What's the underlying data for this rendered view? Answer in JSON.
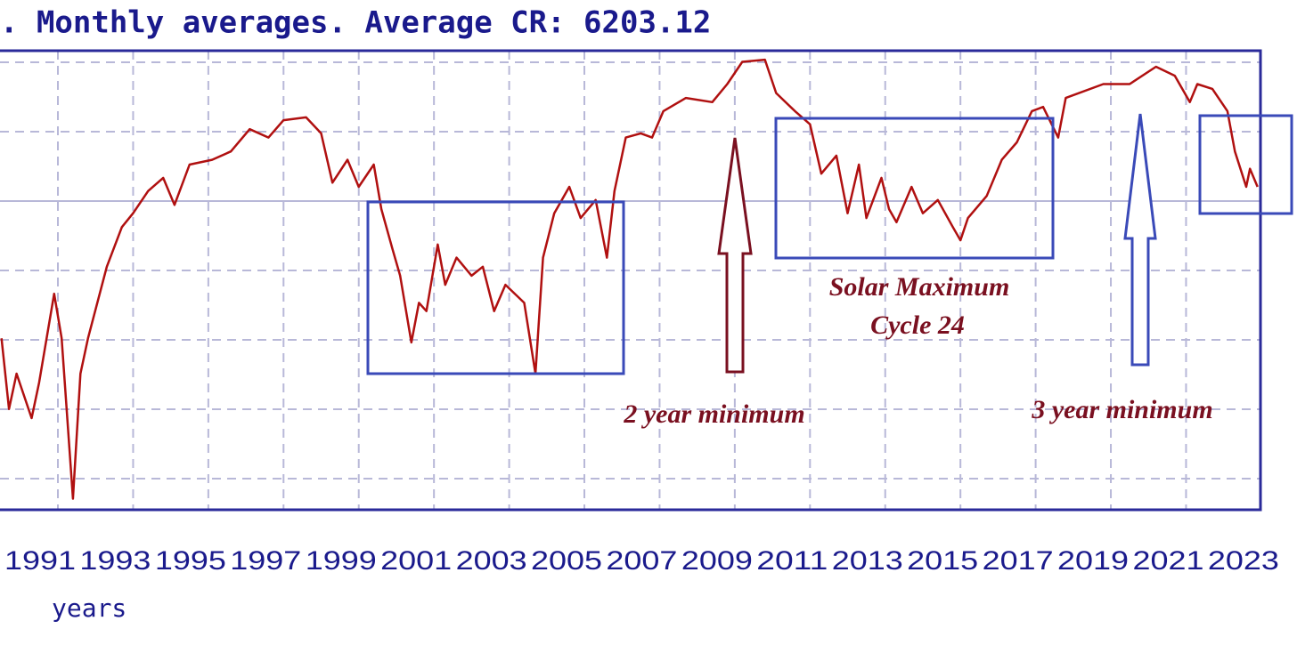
{
  "chart_data": {
    "type": "line",
    "title": ". Monthly averages. Average CR: 6203.12",
    "x_label": "years",
    "xlim": [
      1989.46,
      2023.05
    ],
    "xticks": [
      1991,
      1993,
      1995,
      1997,
      1999,
      2001,
      2003,
      2005,
      2007,
      2009,
      2011,
      2013,
      2015,
      2017,
      2019,
      2021,
      2023
    ],
    "ylim": [
      5758,
      6419
    ],
    "grid": true,
    "annotations": [
      "Solar Maximum",
      "Cycle 24",
      "2 year minimum",
      "3 year minimum"
    ],
    "series": [
      {
        "color": "#b01010",
        "x": [
          1989.5,
          1989.7,
          1989.9,
          1990.3,
          1990.5,
          1990.9,
          1991.1,
          1991.4,
          1991.6,
          1991.8,
          1992.3,
          1992.7,
          1993.0,
          1993.4,
          1993.8,
          1994.1,
          1994.5,
          1995.1,
          1995.6,
          1996.1,
          1996.6,
          1997.0,
          1997.6,
          1998.0,
          1998.3,
          1998.7,
          1999.0,
          1999.4,
          1999.6,
          1999.9,
          2000.1,
          2000.4,
          2000.6,
          2000.8,
          2001.1,
          2001.3,
          2001.6,
          2002.0,
          2002.3,
          2002.6,
          2002.9,
          2003.4,
          2003.7,
          2003.9,
          2004.2,
          2004.6,
          2004.9,
          2005.3,
          2005.6,
          2005.8,
          2006.1,
          2006.5,
          2006.8,
          2007.1,
          2007.7,
          2008.4,
          2008.8,
          2009.2,
          2009.8,
          2010.1,
          2010.6,
          2011.0,
          2011.3,
          2011.7,
          2012.0,
          2012.3,
          2012.5,
          2012.9,
          2013.1,
          2013.3,
          2013.7,
          2014.0,
          2014.4,
          2014.8,
          2015.0,
          2015.2,
          2015.7,
          2016.1,
          2016.5,
          2016.9,
          2017.2,
          2017.6,
          2017.8,
          2018.8,
          2019.5,
          2020.2,
          2020.7,
          2021.1,
          2021.3,
          2021.7,
          2022.1,
          2022.3,
          2022.6,
          2022.7,
          2022.9
        ],
        "values": [
          6005,
          5903,
          5954,
          5890,
          5941,
          6069,
          6005,
          5774,
          5954,
          6005,
          6108,
          6165,
          6185,
          6217,
          6236,
          6197,
          6255,
          6262,
          6274,
          6306,
          6294,
          6319,
          6323,
          6300,
          6229,
          6262,
          6223,
          6255,
          6191,
          6133,
          6095,
          5999,
          6056,
          6044,
          6140,
          6082,
          6121,
          6095,
          6108,
          6044,
          6082,
          6056,
          5954,
          6121,
          6185,
          6223,
          6178,
          6204,
          6121,
          6217,
          6294,
          6300,
          6294,
          6332,
          6351,
          6345,
          6371,
          6403,
          6406,
          6358,
          6332,
          6313,
          6242,
          6268,
          6185,
          6255,
          6178,
          6236,
          6191,
          6172,
          6223,
          6185,
          6204,
          6165,
          6146,
          6178,
          6210,
          6262,
          6287,
          6332,
          6338,
          6294,
          6351,
          6371,
          6371,
          6396,
          6383,
          6345,
          6371,
          6364,
          6332,
          6274,
          6223,
          6249,
          6223
        ]
      }
    ]
  }
}
